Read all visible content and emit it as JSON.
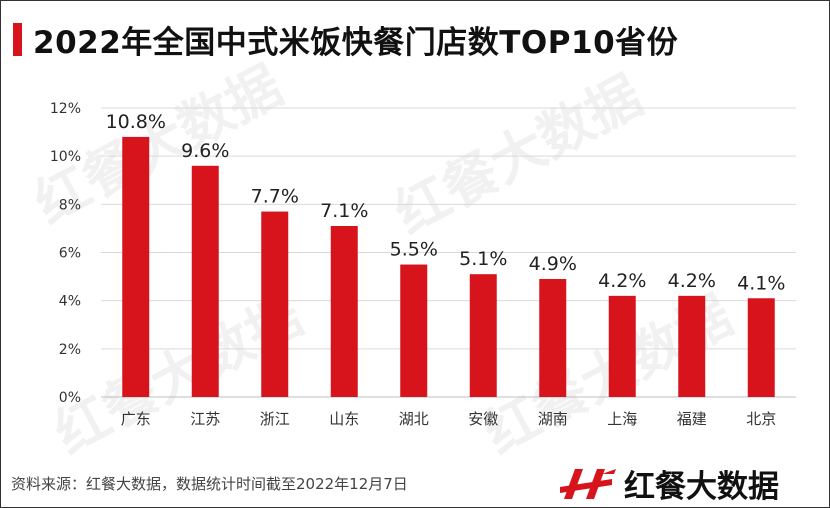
{
  "title": "2022年全国中式米饭快餐门店数TOP10省份",
  "source": "资料来源：红餐大数据，数据统计时间截至2022年12月7日",
  "brand": {
    "name": "红餐大数据",
    "logo_icon": "red-h-logo-icon"
  },
  "watermark": "红餐大数据",
  "colors": {
    "bar": "#d7141c",
    "accent": "#d7141c",
    "grid": "#d9d9d9"
  },
  "chart_data": {
    "type": "bar",
    "title": "2022年全国中式米饭快餐门店数TOP10省份",
    "categories": [
      "广东",
      "江苏",
      "浙江",
      "山东",
      "湖北",
      "安徽",
      "湖南",
      "上海",
      "福建",
      "北京"
    ],
    "values": [
      10.8,
      9.6,
      7.7,
      7.1,
      5.5,
      5.1,
      4.9,
      4.2,
      4.2,
      4.1
    ],
    "value_labels": [
      "10.8%",
      "9.6%",
      "7.7%",
      "7.1%",
      "5.5%",
      "5.1%",
      "4.9%",
      "4.2%",
      "4.2%",
      "4.1%"
    ],
    "ylim": [
      0,
      12
    ],
    "yticks": [
      0,
      2,
      4,
      6,
      8,
      10,
      12
    ],
    "ytick_labels": [
      "0%",
      "2%",
      "4%",
      "6%",
      "8%",
      "10%",
      "12%"
    ],
    "xlabel": "",
    "ylabel": "",
    "grid": true,
    "legend": "none"
  }
}
